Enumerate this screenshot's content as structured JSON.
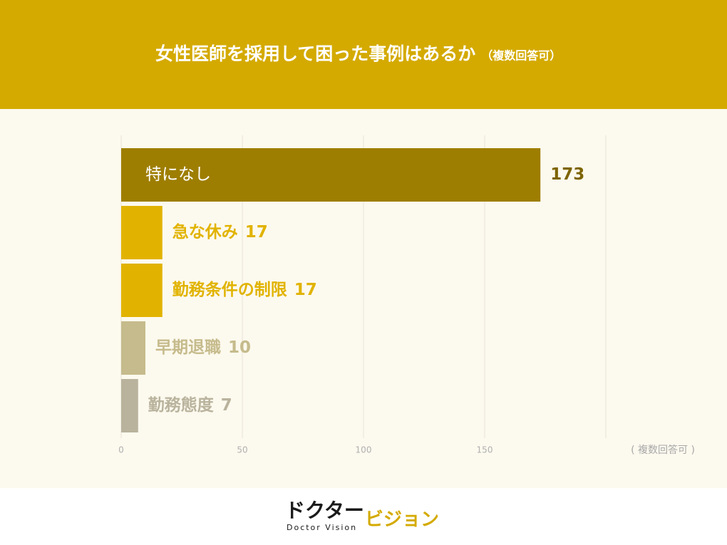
{
  "chart_data": {
    "type": "barh",
    "title": "女性医師を採用して困った事例はあるか",
    "subtitle": "（複数回答可）",
    "categories": [
      "特になし",
      "急な休み",
      "勤務条件の制限",
      "早期退職",
      "勤務態度"
    ],
    "values": [
      173,
      17,
      17,
      10,
      7
    ],
    "colors": [
      "#9e7e00",
      "#e1b300",
      "#e1b300",
      "#c6bb8c",
      "#b9b39d"
    ],
    "xlim": [
      0,
      200
    ],
    "xticks": [
      0,
      50,
      100,
      150
    ],
    "xlabel": "( 複数回答可 )",
    "grid": true
  },
  "logo": {
    "left": "ドクター",
    "right": "ビジョン",
    "tagline": "Doctor Vision"
  }
}
